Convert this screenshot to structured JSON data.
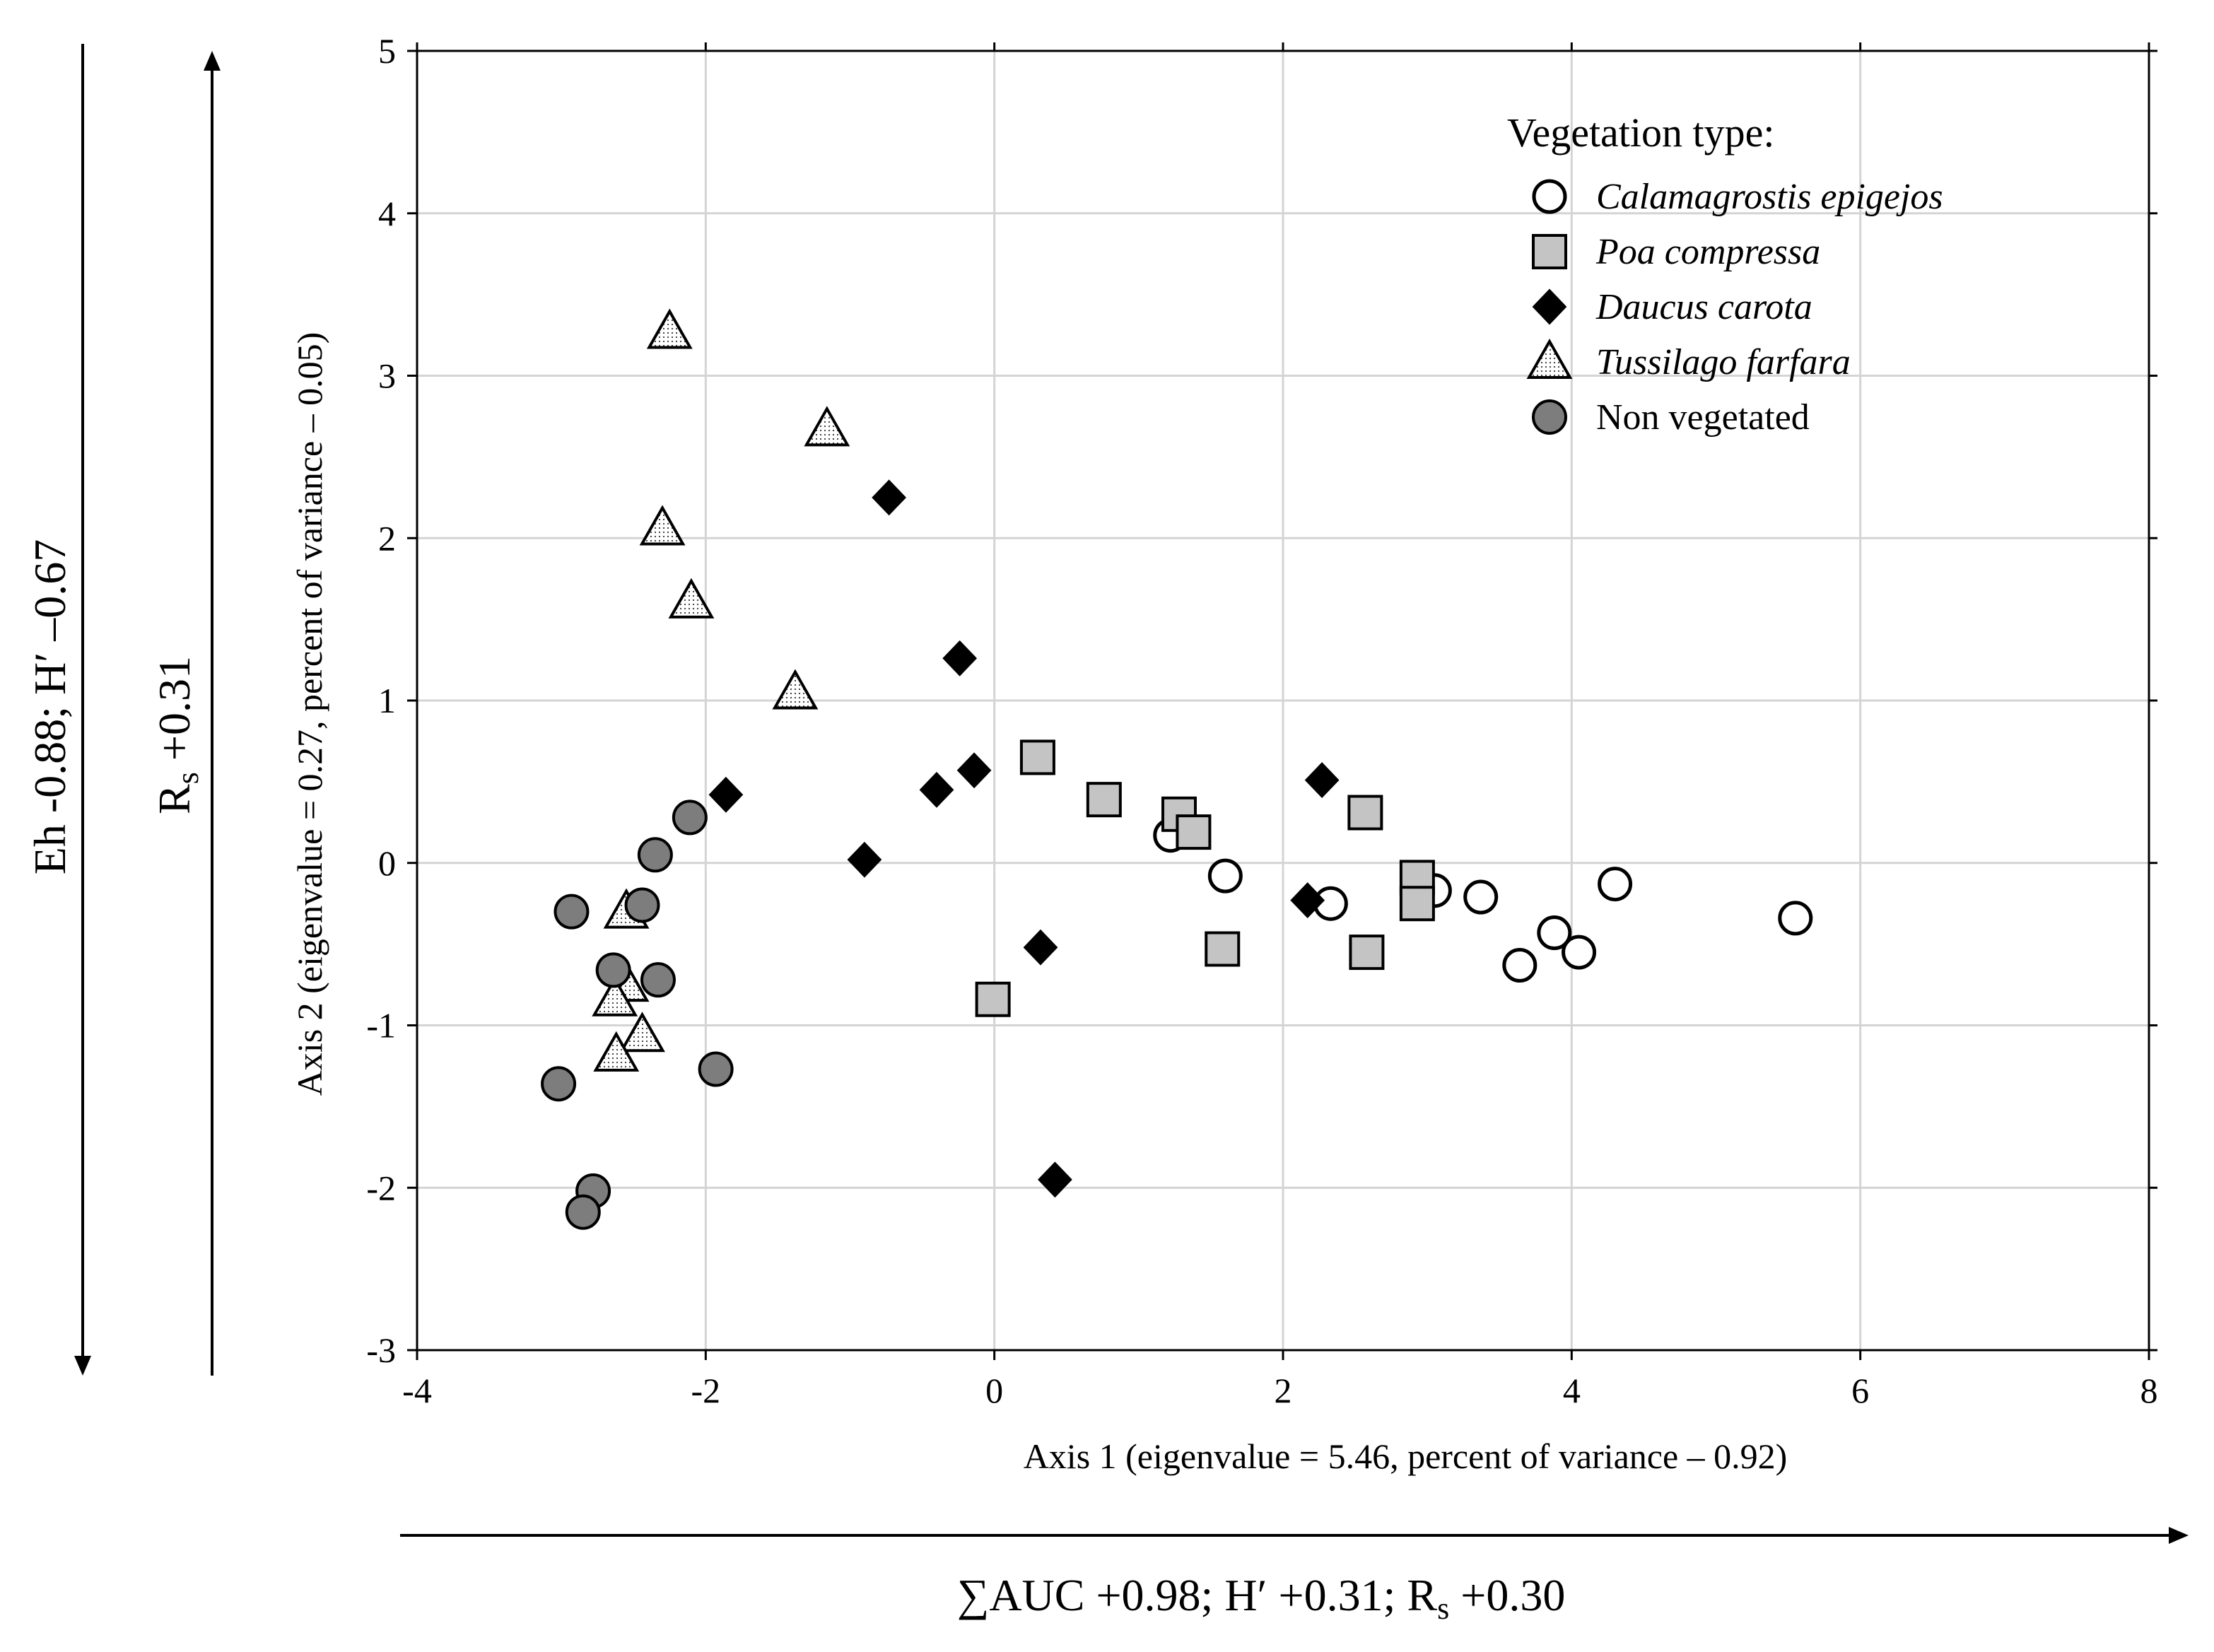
{
  "chart_data": {
    "type": "scatter",
    "xlabel": "Axis 1 (eigenvalue = 5.46, percent  of variance  – 0.92)",
    "ylabel": "Axis 2 (eigenvalue = 0.27, percent  of variance  – 0.05)",
    "xlim": [
      -4,
      8
    ],
    "ylim": [
      -3,
      5
    ],
    "xticks": [
      -4,
      -2,
      0,
      2,
      4,
      6,
      8
    ],
    "yticks": [
      -3,
      -2,
      -1,
      0,
      1,
      2,
      3,
      4,
      5
    ],
    "xtick_labels": [
      "-4",
      "-2",
      "0",
      "2",
      "4",
      "6",
      "8"
    ],
    "ytick_labels": [
      "-3",
      "-2",
      "-1",
      "0",
      "1",
      "2",
      "3",
      "4",
      "5"
    ],
    "grid": true,
    "legend": {
      "title": "Vegetation type:",
      "position": "top-right"
    },
    "series": [
      {
        "name": "Calamagrostis epigejos",
        "marker": "open-circle",
        "italic": true,
        "points": [
          [
            1.22,
            0.17
          ],
          [
            1.6,
            -0.08
          ],
          [
            2.33,
            -0.25
          ],
          [
            3.05,
            -0.17
          ],
          [
            3.37,
            -0.21
          ],
          [
            3.64,
            -0.63
          ],
          [
            3.88,
            -0.43
          ],
          [
            4.05,
            -0.55
          ],
          [
            4.3,
            -0.13
          ],
          [
            5.55,
            -0.34
          ]
        ]
      },
      {
        "name": "Poa compressa",
        "marker": "gray-square",
        "italic": true,
        "points": [
          [
            0.3,
            0.65
          ],
          [
            0.76,
            0.39
          ],
          [
            1.28,
            0.3
          ],
          [
            1.38,
            0.19
          ],
          [
            1.58,
            -0.53
          ],
          [
            2.57,
            0.31
          ],
          [
            2.93,
            -0.09
          ],
          [
            2.93,
            -0.25
          ],
          [
            2.58,
            -0.55
          ],
          [
            -0.01,
            -0.84
          ]
        ]
      },
      {
        "name": "Daucus carota",
        "marker": "black-diamond",
        "italic": true,
        "points": [
          [
            -0.73,
            2.25
          ],
          [
            -0.24,
            1.26
          ],
          [
            -0.14,
            0.57
          ],
          [
            -0.4,
            0.45
          ],
          [
            -1.86,
            0.42
          ],
          [
            -0.9,
            0.02
          ],
          [
            2.27,
            0.51
          ],
          [
            2.17,
            -0.23
          ],
          [
            0.32,
            -0.52
          ],
          [
            0.42,
            -1.95
          ]
        ]
      },
      {
        "name": "Tussilago farfara",
        "marker": "dotted-triangle",
        "italic": true,
        "points": [
          [
            -2.25,
            3.27
          ],
          [
            -1.16,
            2.67
          ],
          [
            -2.3,
            2.06
          ],
          [
            -2.1,
            1.61
          ],
          [
            -1.38,
            1.05
          ],
          [
            -2.55,
            -0.3
          ],
          [
            -2.55,
            -0.75
          ],
          [
            -2.63,
            -0.84
          ],
          [
            -2.44,
            -1.06
          ],
          [
            -2.62,
            -1.18
          ]
        ]
      },
      {
        "name": "Non vegetated",
        "marker": "gray-circle",
        "italic": false,
        "points": [
          [
            -2.11,
            0.28
          ],
          [
            -2.35,
            0.05
          ],
          [
            -2.44,
            -0.26
          ],
          [
            -2.93,
            -0.3
          ],
          [
            -2.64,
            -0.66
          ],
          [
            -2.33,
            -0.72
          ],
          [
            -1.93,
            -1.27
          ],
          [
            -3.02,
            -1.36
          ],
          [
            -2.78,
            -2.02
          ],
          [
            -2.85,
            -2.15
          ]
        ]
      }
    ]
  },
  "annotations": {
    "left_outer": "Eh -0.88; H′ –0.67",
    "left_inner_main": "R",
    "left_inner_sub": "s",
    "left_inner_value": " +0.31",
    "bottom_main": "∑AUC +0.98; H′ +0.31; R",
    "bottom_sub": "s",
    "bottom_value": " +0.30"
  }
}
